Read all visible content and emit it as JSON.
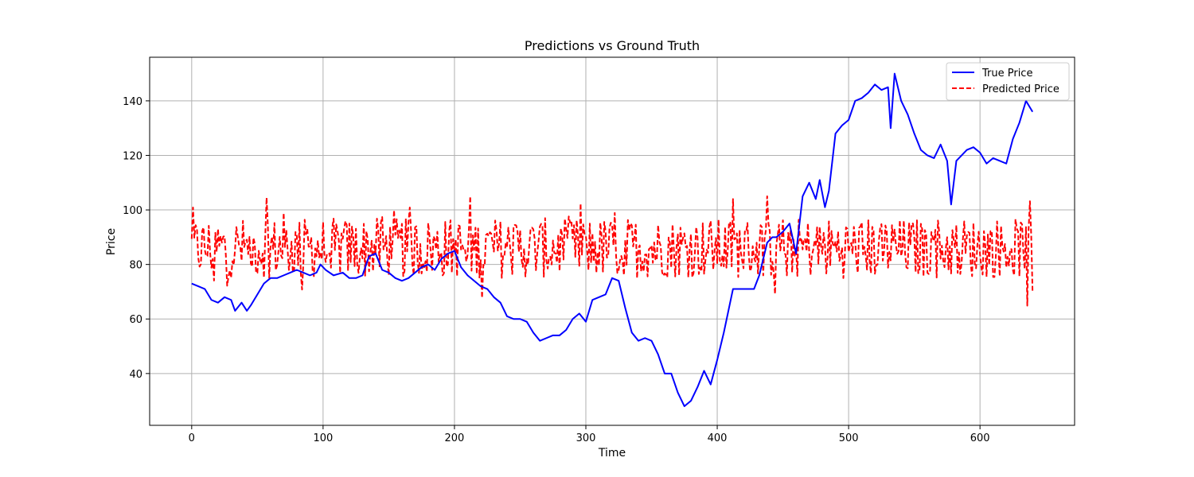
{
  "chart_data": {
    "type": "line",
    "title": "Predictions vs Ground Truth",
    "xlabel": "Time",
    "ylabel": "Price",
    "xlim": [
      -32,
      672
    ],
    "ylim": [
      21,
      156
    ],
    "xticks": [
      0,
      100,
      200,
      300,
      400,
      500,
      600
    ],
    "yticks": [
      40,
      60,
      80,
      100,
      120,
      140
    ],
    "grid": true,
    "legend": "top-right",
    "series": [
      {
        "name": "True Price",
        "color": "#0000ff",
        "style": "solid",
        "x": [
          0,
          5,
          10,
          15,
          20,
          25,
          30,
          33,
          38,
          42,
          45,
          50,
          55,
          60,
          65,
          70,
          75,
          80,
          85,
          90,
          95,
          98,
          102,
          108,
          115,
          120,
          125,
          130,
          135,
          140,
          145,
          150,
          155,
          160,
          165,
          170,
          175,
          180,
          185,
          190,
          195,
          200,
          205,
          210,
          215,
          220,
          225,
          230,
          235,
          240,
          245,
          250,
          255,
          260,
          265,
          270,
          275,
          280,
          285,
          290,
          295,
          300,
          305,
          310,
          315,
          320,
          325,
          330,
          335,
          340,
          345,
          350,
          355,
          360,
          365,
          370,
          375,
          380,
          385,
          390,
          395,
          400,
          405,
          412,
          418,
          422,
          428,
          432,
          438,
          442,
          445,
          450,
          455,
          460,
          465,
          470,
          475,
          478,
          482,
          485,
          490,
          495,
          500,
          505,
          510,
          515,
          520,
          525,
          530,
          532,
          535,
          540,
          545,
          550,
          555,
          560,
          565,
          570,
          575,
          578,
          582,
          590,
          595,
          600,
          605,
          610,
          615,
          620,
          625,
          630,
          635,
          640
        ],
        "y": [
          73,
          72,
          71,
          67,
          66,
          68,
          67,
          63,
          66,
          63,
          65,
          69,
          73,
          75,
          75,
          76,
          77,
          78,
          77,
          76,
          77,
          80,
          78,
          76,
          77,
          75,
          75,
          76,
          83,
          84,
          78,
          77,
          75,
          74,
          75,
          77,
          79,
          80,
          78,
          82,
          84,
          85,
          79,
          76,
          74,
          72,
          71,
          68,
          66,
          61,
          60,
          60,
          59,
          55,
          52,
          53,
          54,
          54,
          56,
          60,
          62,
          59,
          67,
          68,
          69,
          75,
          74,
          64,
          55,
          52,
          53,
          52,
          47,
          40,
          40,
          33,
          28,
          30,
          35,
          41,
          36,
          45,
          55,
          71,
          71,
          71,
          71,
          76,
          88,
          90,
          90,
          92,
          95,
          84,
          105,
          110,
          104,
          111,
          101,
          107,
          128,
          131,
          133,
          140,
          141,
          143,
          146,
          144,
          145,
          130,
          150,
          140,
          135,
          128,
          122,
          120,
          119,
          124,
          118,
          102,
          118,
          122,
          123,
          121,
          117,
          119,
          118,
          117,
          126,
          132,
          140,
          136
        ]
      },
      {
        "name": "Predicted Price",
        "color": "#ff0000",
        "style": "dashed",
        "x": [],
        "y": []
      }
    ]
  }
}
